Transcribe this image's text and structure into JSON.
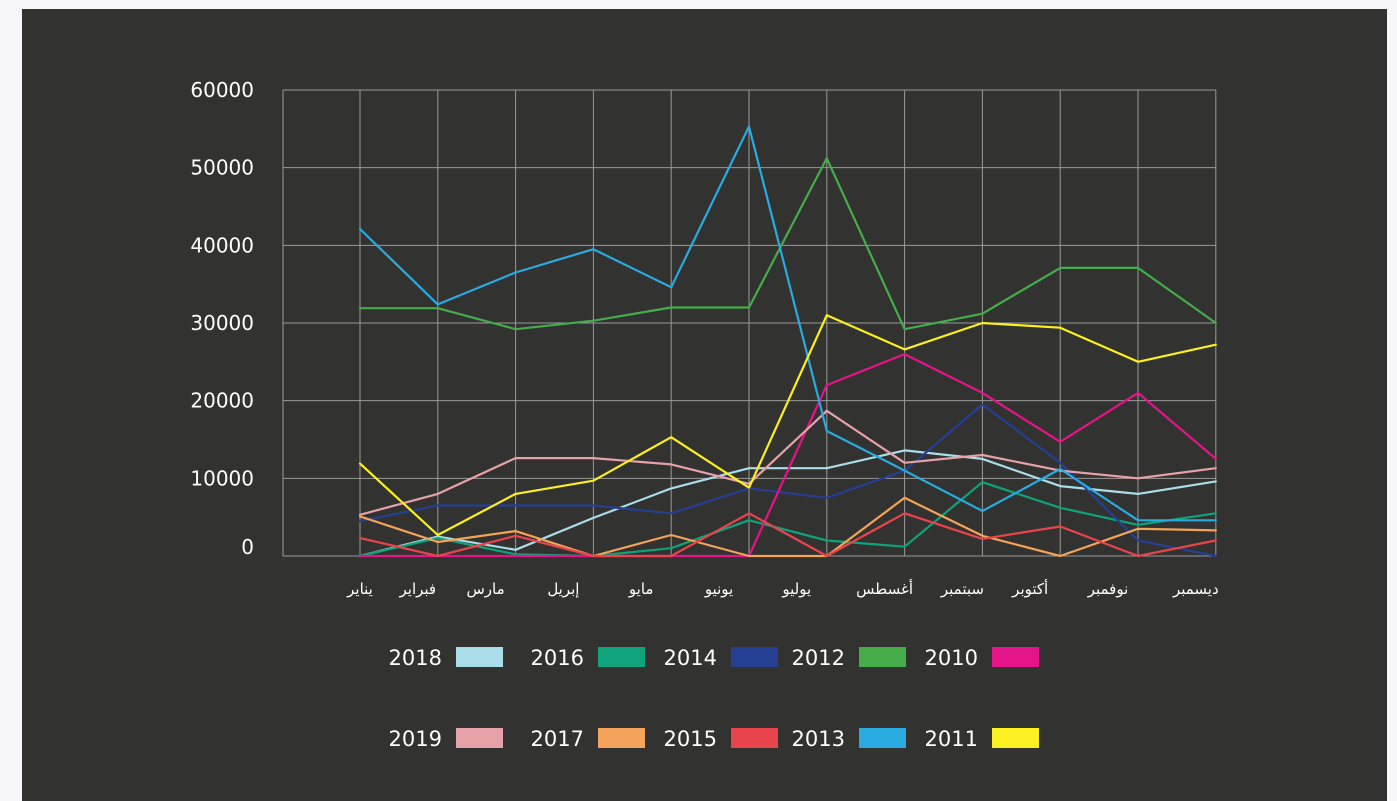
{
  "chart_data": {
    "type": "line",
    "title": "",
    "xlabel": "",
    "ylabel": "",
    "ylim": [
      0,
      60000
    ],
    "yticks": [
      0,
      10000,
      20000,
      30000,
      40000,
      50000,
      60000
    ],
    "grid": true,
    "legend_position": "bottom",
    "categories": [
      "يناير",
      "فبراير",
      "مارس",
      "إبريل",
      "مايو",
      "يونيو",
      "يوليو",
      "أغسطس",
      "سبتمبر",
      "أكتوبر",
      "نوفمبر",
      "ديسمبر"
    ],
    "series": [
      {
        "name": "2018",
        "color": "#a8dde9",
        "values": [
          0,
          2500,
          800,
          4900,
          8700,
          11300,
          11300,
          13600,
          12500,
          9000,
          8000,
          9600
        ]
      },
      {
        "name": "2016",
        "color": "#0ea37a",
        "values": [
          0,
          2300,
          200,
          0,
          1000,
          4600,
          2000,
          1200,
          9500,
          6200,
          4000,
          5500
        ]
      },
      {
        "name": "2014",
        "color": "#253f93",
        "values": [
          4500,
          6500,
          6500,
          6500,
          5500,
          8700,
          7500,
          11000,
          19500,
          12000,
          2000,
          0
        ]
      },
      {
        "name": "2012",
        "color": "#44ad4a",
        "values": [
          31900,
          31900,
          29200,
          30300,
          32000,
          32000,
          51200,
          29200,
          31200,
          37100,
          37100,
          30000
        ]
      },
      {
        "name": "2010",
        "color": "#e5148a",
        "values": [
          0,
          0,
          0,
          0,
          0,
          0,
          22000,
          26000,
          21000,
          14700,
          21000,
          12500
        ]
      },
      {
        "name": "2019",
        "color": "#e6a1a9",
        "values": [
          5300,
          8000,
          12600,
          12600,
          11800,
          9300,
          18700,
          12000,
          13000,
          11000,
          10000,
          11300
        ]
      },
      {
        "name": "2017",
        "color": "#f3a35a",
        "values": [
          5100,
          1800,
          3200,
          0,
          2700,
          0,
          0,
          7500,
          2600,
          0,
          3500,
          3300
        ]
      },
      {
        "name": "2015",
        "color": "#e9444c",
        "values": [
          2300,
          0,
          2600,
          0,
          0,
          5500,
          0,
          5500,
          2200,
          3800,
          0,
          2000
        ]
      },
      {
        "name": "2013",
        "color": "#29aae1",
        "values": [
          42100,
          32400,
          36500,
          39500,
          34600,
          55300,
          16100,
          11000,
          5800,
          11200,
          4600,
          4600
        ]
      },
      {
        "name": "2011",
        "color": "#fcef22",
        "values": [
          11900,
          2700,
          8000,
          9700,
          15300,
          8800,
          31000,
          26600,
          30000,
          29400,
          25000,
          27200
        ]
      }
    ]
  }
}
